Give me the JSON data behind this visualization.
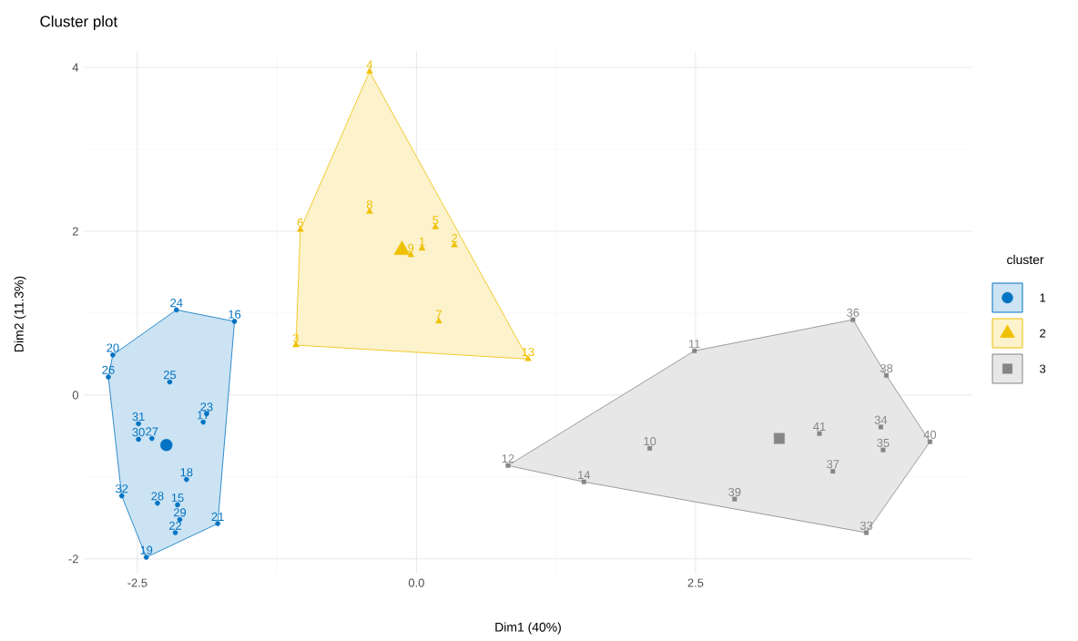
{
  "chart_data": {
    "type": "scatter",
    "title": "Cluster plot",
    "xlabel": "Dim1 (40%)",
    "ylabel": "Dim2 (11.3%)",
    "legend_title": "cluster",
    "legend": "right",
    "grid": true,
    "xlim": [
      -2.98,
      4.98
    ],
    "ylim": [
      -2.18,
      4.19
    ],
    "xticks": [
      -2.5,
      {
        "value": 0,
        "label": "0.0"
      },
      2.5
    ],
    "yticks": [
      -2,
      0,
      2,
      4
    ],
    "series": [
      {
        "type": "area",
        "color": "#0073c2",
        "x": [
          -2.76,
          -2.72,
          -2.15,
          -1.63,
          -1.78,
          -2.42,
          -2.64
        ],
        "values": [
          0.22,
          0.49,
          1.04,
          0.9,
          -1.57,
          -1.98,
          -1.23
        ]
      },
      {
        "type": "area",
        "color": "#efc000",
        "x": [
          -1.08,
          -1.04,
          -0.42,
          1.0
        ],
        "values": [
          0.61,
          2.02,
          3.95,
          0.44
        ]
      },
      {
        "type": "area",
        "color": "#868686",
        "x": [
          0.82,
          2.49,
          3.91,
          4.21,
          4.6,
          4.03,
          1.5
        ],
        "values": [
          -0.86,
          0.54,
          0.92,
          0.24,
          -0.57,
          -1.68,
          -1.06
        ]
      },
      {
        "name": "1",
        "marker": "circle",
        "color": "#0073c2",
        "x": [
          -2.15,
          -1.63,
          -2.72,
          -2.76,
          -2.21,
          -1.88,
          -1.91,
          -2.49,
          -2.49,
          -2.37,
          -2.06,
          -2.32,
          -2.14,
          -2.12,
          -2.16,
          -2.64,
          -1.78,
          -2.42
        ],
        "values": [
          1.04,
          0.9,
          0.49,
          0.22,
          0.16,
          -0.23,
          -0.33,
          -0.35,
          -0.54,
          -0.53,
          -1.03,
          -1.32,
          -1.34,
          -1.52,
          -1.68,
          -1.23,
          -1.57,
          -1.98
        ]
      },
      {
        "name": "2",
        "marker": "triangle",
        "color": "#efc000",
        "x": [
          -0.42,
          -1.04,
          -0.42,
          0.17,
          0.34,
          0.05,
          -0.05,
          0.2,
          -1.08,
          1.0
        ],
        "values": [
          3.95,
          2.02,
          2.24,
          2.05,
          1.83,
          1.79,
          1.71,
          0.9,
          0.61,
          0.44
        ]
      },
      {
        "name": "3",
        "marker": "square",
        "color": "#868686",
        "x": [
          2.49,
          3.91,
          4.21,
          4.16,
          4.18,
          4.6,
          3.61,
          3.73,
          2.09,
          0.82,
          1.5,
          2.85,
          4.03
        ],
        "values": [
          0.54,
          0.92,
          0.24,
          -0.39,
          -0.67,
          -0.57,
          -0.47,
          -0.93,
          -0.65,
          -0.86,
          -1.06,
          -1.27,
          -1.68
        ]
      },
      {
        "type": "bubble",
        "marker": "circle",
        "color": "#0073c2",
        "x": [
          -2.24
        ],
        "values": [
          -0.61
        ],
        "sizes": [
          1
        ]
      },
      {
        "type": "bubble",
        "marker": "triangle",
        "color": "#efc000",
        "x": [
          -0.13
        ],
        "values": [
          1.77
        ],
        "sizes": [
          1
        ]
      },
      {
        "type": "bubble",
        "marker": "square",
        "color": "#868686",
        "x": [
          3.25
        ],
        "values": [
          -0.53
        ],
        "sizes": [
          1
        ]
      }
    ],
    "annotations": [
      {
        "text": "24",
        "x": -2.15,
        "y": 1.04
      },
      {
        "text": "16",
        "x": -1.63,
        "y": 0.9
      },
      {
        "text": "20",
        "x": -2.72,
        "y": 0.49
      },
      {
        "text": "26",
        "x": -2.76,
        "y": 0.22
      },
      {
        "text": "25",
        "x": -2.21,
        "y": 0.16
      },
      {
        "text": "23",
        "x": -1.88,
        "y": -0.23
      },
      {
        "text": "17",
        "x": -1.91,
        "y": -0.33
      },
      {
        "text": "31",
        "x": -2.49,
        "y": -0.35
      },
      {
        "text": "30",
        "x": -2.49,
        "y": -0.54
      },
      {
        "text": "27",
        "x": -2.37,
        "y": -0.53
      },
      {
        "text": "18",
        "x": -2.06,
        "y": -1.03
      },
      {
        "text": "28",
        "x": -2.32,
        "y": -1.32
      },
      {
        "text": "15",
        "x": -2.14,
        "y": -1.34
      },
      {
        "text": "29",
        "x": -2.12,
        "y": -1.52
      },
      {
        "text": "22",
        "x": -2.16,
        "y": -1.68
      },
      {
        "text": "32",
        "x": -2.64,
        "y": -1.23
      },
      {
        "text": "21",
        "x": -1.78,
        "y": -1.57
      },
      {
        "text": "19",
        "x": -2.42,
        "y": -1.98
      },
      {
        "text": "4",
        "x": -0.42,
        "y": 3.95
      },
      {
        "text": "6",
        "x": -1.04,
        "y": 2.02
      },
      {
        "text": "8",
        "x": -0.42,
        "y": 2.24
      },
      {
        "text": "5",
        "x": 0.17,
        "y": 2.05
      },
      {
        "text": "2",
        "x": 0.34,
        "y": 1.83
      },
      {
        "text": "1",
        "x": 0.05,
        "y": 1.79
      },
      {
        "text": "9",
        "x": -0.05,
        "y": 1.71
      },
      {
        "text": "7",
        "x": 0.2,
        "y": 0.9
      },
      {
        "text": "3",
        "x": -1.08,
        "y": 0.61
      },
      {
        "text": "13",
        "x": 1.0,
        "y": 0.44
      },
      {
        "text": "11",
        "x": 2.49,
        "y": 0.54
      },
      {
        "text": "36",
        "x": 3.91,
        "y": 0.92
      },
      {
        "text": "38",
        "x": 4.21,
        "y": 0.24
      },
      {
        "text": "34",
        "x": 4.16,
        "y": -0.39
      },
      {
        "text": "35",
        "x": 4.18,
        "y": -0.67
      },
      {
        "text": "40",
        "x": 4.6,
        "y": -0.57
      },
      {
        "text": "41",
        "x": 3.61,
        "y": -0.47
      },
      {
        "text": "37",
        "x": 3.73,
        "y": -0.93
      },
      {
        "text": "10",
        "x": 2.09,
        "y": -0.65
      },
      {
        "text": "12",
        "x": 0.82,
        "y": -0.86
      },
      {
        "text": "14",
        "x": 1.5,
        "y": -1.06
      },
      {
        "text": "39",
        "x": 2.85,
        "y": -1.27
      },
      {
        "text": "33",
        "x": 4.03,
        "y": -1.68
      }
    ]
  }
}
